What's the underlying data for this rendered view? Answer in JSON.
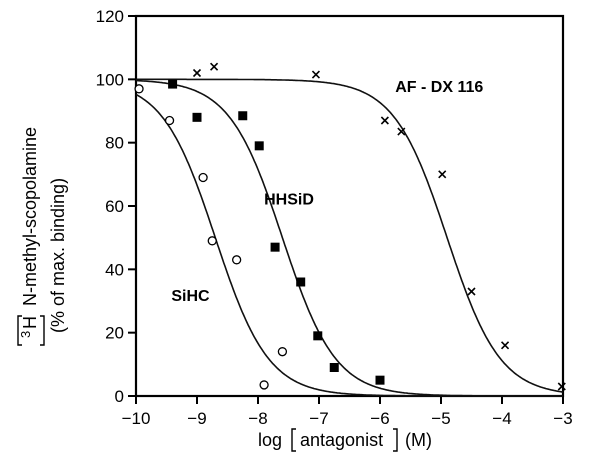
{
  "chart_data": {
    "type": "scatter",
    "xlabel_prefix": "log",
    "xlabel_bracket": "antagonist",
    "xlabel_unit": "(M)",
    "ylabel_bracket": "3",
    "ylabel_main": "N-methyl-scopolamine",
    "ylabel_sub": "(% of max. binding)",
    "xlim": [
      -10,
      -3
    ],
    "ylim": [
      0,
      120
    ],
    "xticks": [
      -10,
      -9,
      -8,
      -7,
      -6,
      -5,
      -4,
      -3
    ],
    "yticks": [
      0,
      20,
      40,
      60,
      80,
      100,
      120
    ],
    "xtick_labels": [
      "−10",
      "−9",
      "−8",
      "−7",
      "−6",
      "−5",
      "−4",
      "−3"
    ],
    "ytick_labels": [
      "0",
      "20",
      "40",
      "60",
      "80",
      "100",
      "120"
    ],
    "grid": false,
    "series": [
      {
        "name": "SiHC",
        "marker": "open-circle",
        "points": [
          [
            -9.95,
            97
          ],
          [
            -9.45,
            87
          ],
          [
            -8.9,
            69
          ],
          [
            -8.75,
            49
          ],
          [
            -8.35,
            43
          ],
          [
            -7.6,
            14
          ],
          [
            -7.9,
            3.5
          ]
        ],
        "curve": {
          "ic50_log": -8.7,
          "hill": 1.0,
          "top": 100,
          "bottom": 0
        }
      },
      {
        "name": "HHSiD",
        "marker": "filled-square",
        "points": [
          [
            -9.4,
            98.5
          ],
          [
            -9.0,
            88
          ],
          [
            -8.25,
            88.5
          ],
          [
            -7.98,
            79
          ],
          [
            -7.72,
            47
          ],
          [
            -7.3,
            36
          ],
          [
            -7.02,
            19
          ],
          [
            -6.75,
            9
          ],
          [
            -6.0,
            5
          ]
        ],
        "curve": {
          "ic50_log": -7.6,
          "hill": 1.0,
          "top": 100,
          "bottom": 0
        }
      },
      {
        "name": "AF - DX 116",
        "marker": "x",
        "points": [
          [
            -9.0,
            102
          ],
          [
            -8.72,
            104
          ],
          [
            -7.05,
            101.5
          ],
          [
            -5.92,
            87
          ],
          [
            -5.65,
            83.5
          ],
          [
            -4.98,
            70
          ],
          [
            -4.5,
            33
          ],
          [
            -3.95,
            16
          ],
          [
            -3.02,
            3
          ]
        ],
        "curve": {
          "ic50_log": -4.9,
          "hill": 1.0,
          "top": 100,
          "bottom": 0
        }
      }
    ]
  }
}
